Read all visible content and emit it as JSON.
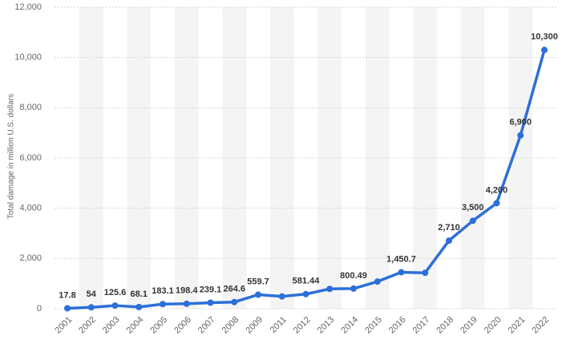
{
  "chart_data": {
    "type": "line",
    "y_label": "Total damage in million U.S. dollars",
    "categories": [
      "2001",
      "2002",
      "2003",
      "2004",
      "2005",
      "2006",
      "2007",
      "2008",
      "2009",
      "2011",
      "2012",
      "2013",
      "2014",
      "2015",
      "2016",
      "2017",
      "2018",
      "2019",
      "2020",
      "2021",
      "2022"
    ],
    "series": [
      {
        "name": "Total damage",
        "color": "#2c6fd8",
        "values": [
          17.8,
          54,
          125.6,
          68.1,
          183.1,
          198.4,
          239.1,
          264.6,
          559.7,
          490,
          581.44,
          790,
          800.49,
          1080,
          1450.7,
          1430,
          2710,
          3500,
          4200,
          6900,
          10300
        ],
        "value_labels": [
          "17.8",
          "54",
          "125.6",
          "68.1",
          "183.1",
          "198.4",
          "239.1",
          "264.6",
          "559.7",
          null,
          "581.44",
          null,
          "800.49",
          null,
          "1,450.7",
          null,
          "2,710",
          "3,500",
          "4,200",
          "6,900",
          "10,300"
        ]
      }
    ],
    "ylim": [
      0,
      12000
    ],
    "yticks": [
      0,
      {
        "value": 2000,
        "label": "2,000"
      },
      {
        "value": 4000,
        "label": "4,000"
      },
      {
        "value": 6000,
        "label": "6,000"
      },
      {
        "value": 8000,
        "label": "8,000"
      },
      {
        "value": 10000,
        "label": "10,000"
      },
      {
        "value": 12000,
        "label": "12,000"
      }
    ],
    "grid": true
  }
}
